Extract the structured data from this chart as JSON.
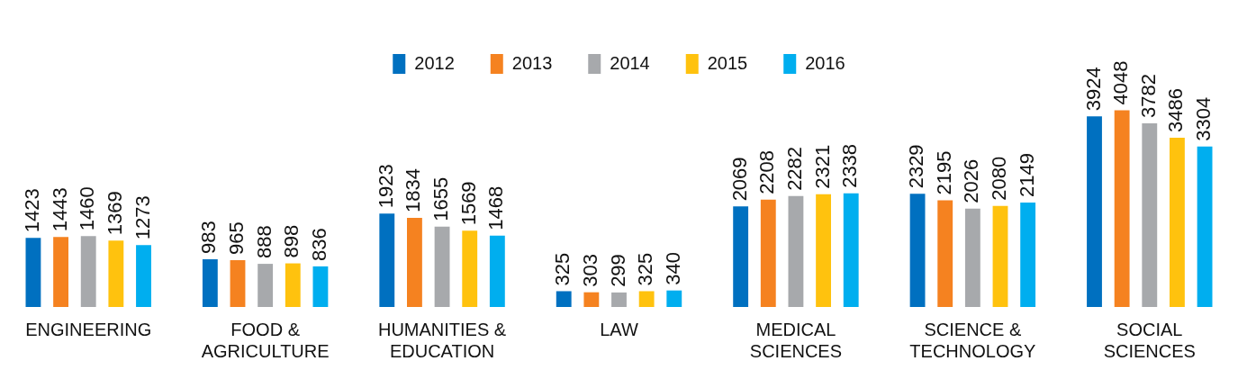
{
  "chart_data": {
    "type": "bar",
    "categories": [
      "ENGINEERING",
      "FOOD & AGRICULTURE",
      "HUMANITIES & EDUCATION",
      "LAW",
      "MEDICAL SCIENCES",
      "SCIENCE & TECHNOLOGY",
      "SOCIAL SCIENCES"
    ],
    "series": [
      {
        "name": "2012",
        "color": "#0070c0",
        "values": [
          1423,
          983,
          1923,
          325,
          2069,
          2329,
          3924
        ]
      },
      {
        "name": "2013",
        "color": "#f58220",
        "values": [
          1443,
          965,
          1834,
          303,
          2208,
          2195,
          4048
        ]
      },
      {
        "name": "2014",
        "color": "#a7a9ac",
        "values": [
          1460,
          888,
          1655,
          299,
          2282,
          2026,
          3782
        ]
      },
      {
        "name": "2015",
        "color": "#ffc20e",
        "values": [
          1369,
          898,
          1569,
          325,
          2321,
          2080,
          3486
        ]
      },
      {
        "name": "2016",
        "color": "#00aeef",
        "values": [
          1273,
          836,
          1468,
          340,
          2338,
          2149,
          3304
        ]
      }
    ],
    "data_labels": true,
    "legend": "top",
    "grid": false
  }
}
